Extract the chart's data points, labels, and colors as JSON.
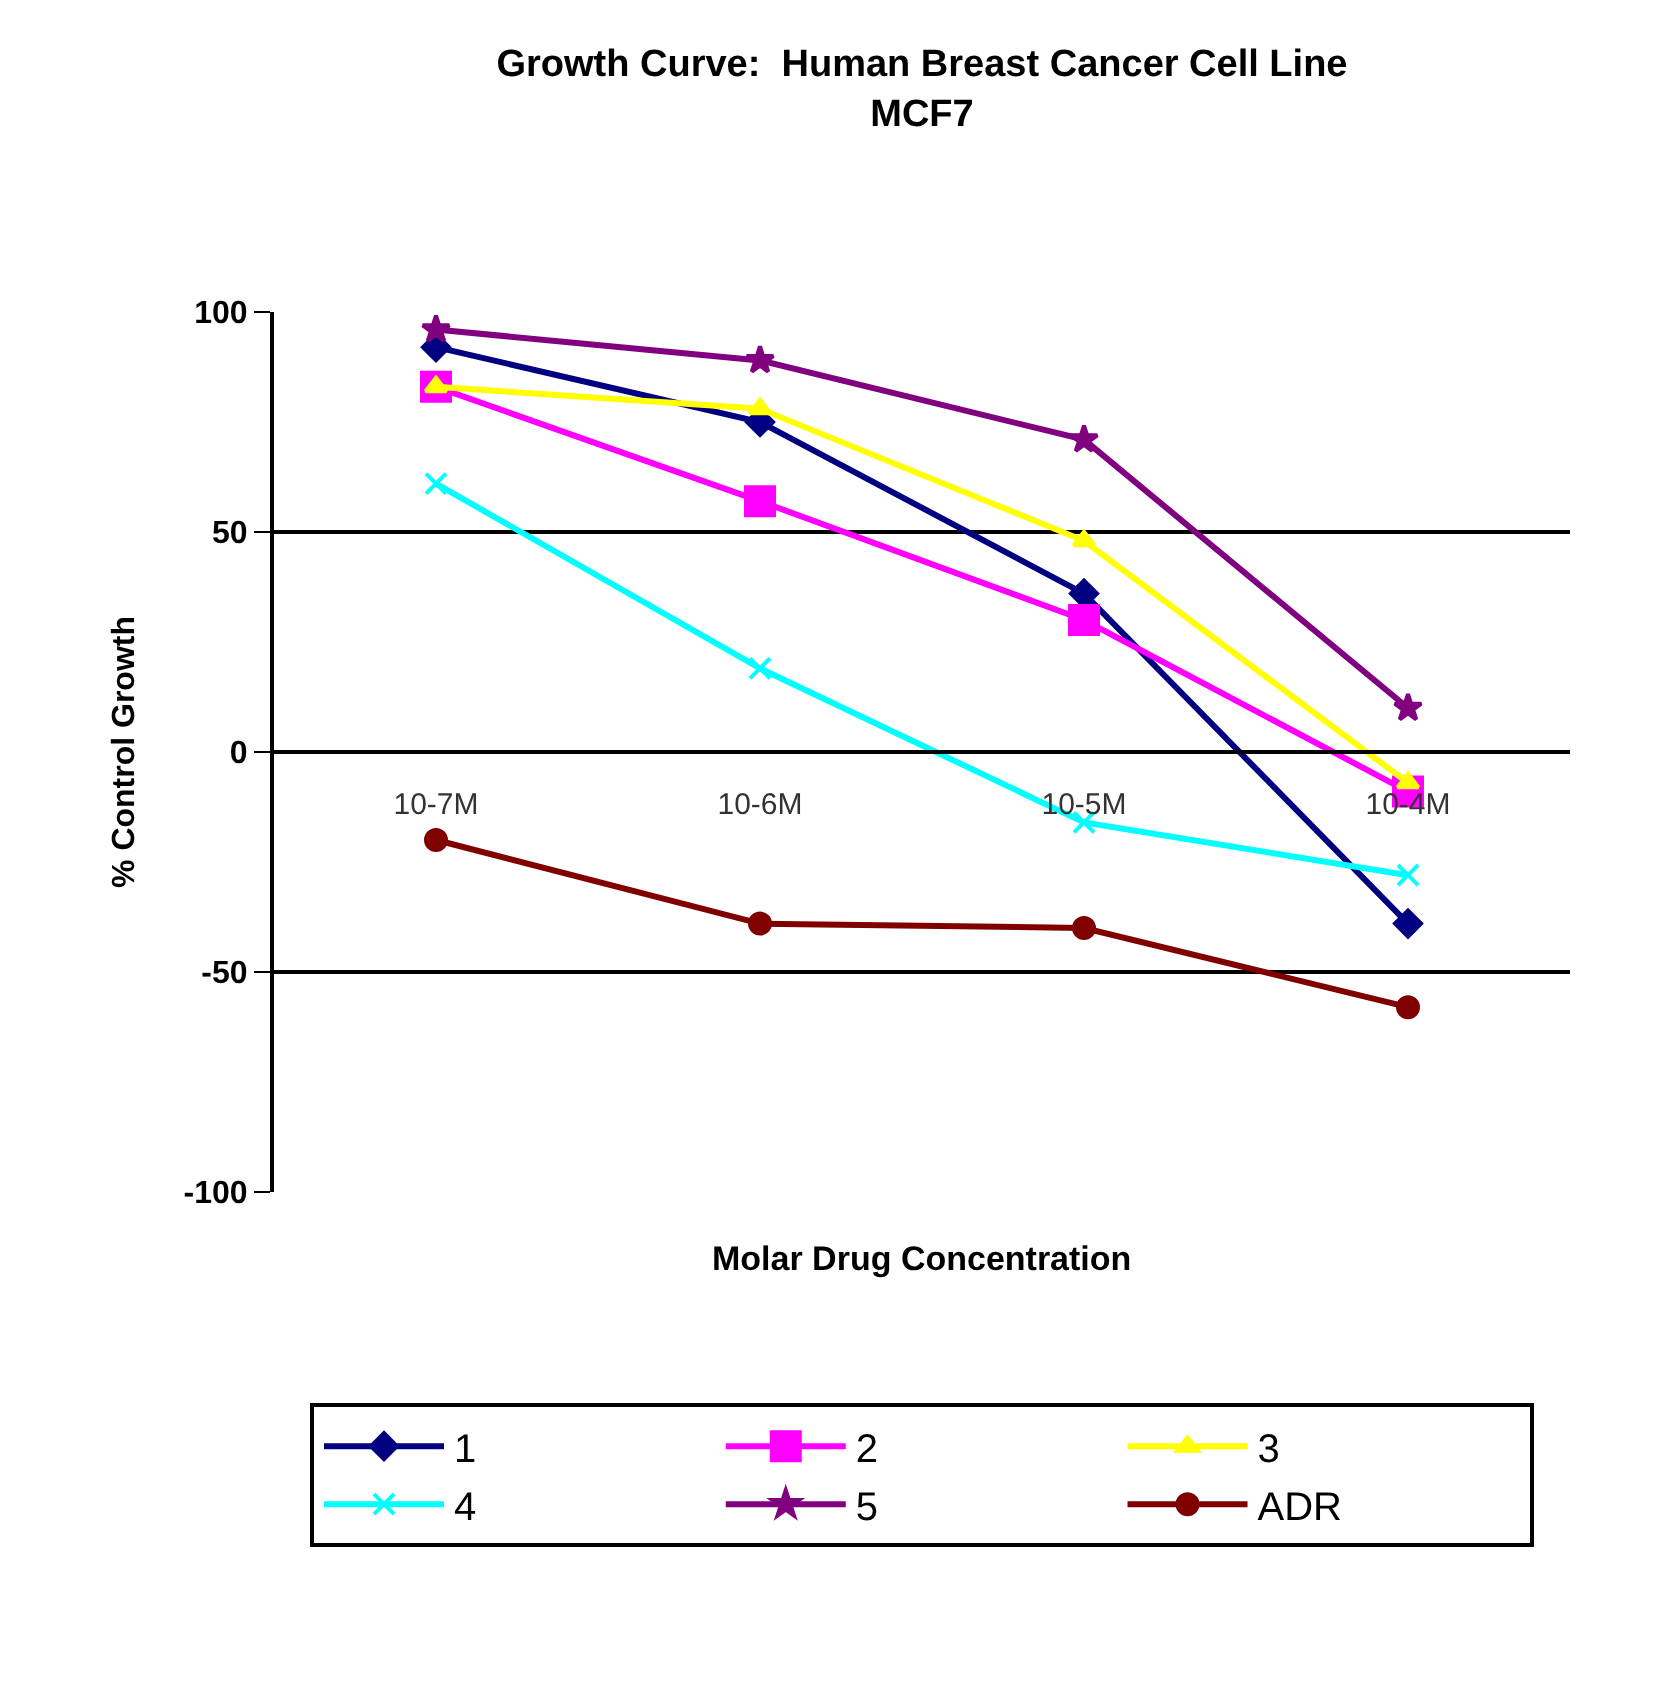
{
  "chart_data": {
    "type": "line",
    "title": "Growth Curve:  Human Breast Cancer Cell Line\nMCF7",
    "xlabel": "Molar Drug Concentration",
    "ylabel": "% Control Growth",
    "categories": [
      "10-7M",
      "10-6M",
      "10-5M",
      "10-4M"
    ],
    "series": [
      {
        "name": "1",
        "color": "#000080",
        "marker": "diamond",
        "values": [
          92,
          75,
          36,
          -39
        ]
      },
      {
        "name": "2",
        "color": "#ff00ff",
        "marker": "square",
        "values": [
          83,
          57,
          30,
          -9
        ]
      },
      {
        "name": "3",
        "color": "#ffff00",
        "marker": "triangle",
        "values": [
          83,
          78,
          48,
          -7
        ]
      },
      {
        "name": "4",
        "color": "#00ffff",
        "marker": "cross",
        "values": [
          61,
          19,
          -16,
          -28
        ]
      },
      {
        "name": "5",
        "color": "#800080",
        "marker": "star",
        "values": [
          96,
          89,
          71,
          10
        ]
      },
      {
        "name": "ADR",
        "color": "#800000",
        "marker": "circle",
        "values": [
          -20,
          -39,
          -40,
          -58
        ]
      }
    ],
    "ylim": [
      -100,
      100
    ],
    "yticks": [
      -100,
      -50,
      0,
      50,
      100
    ],
    "grid": "y",
    "legend": "bottom"
  }
}
